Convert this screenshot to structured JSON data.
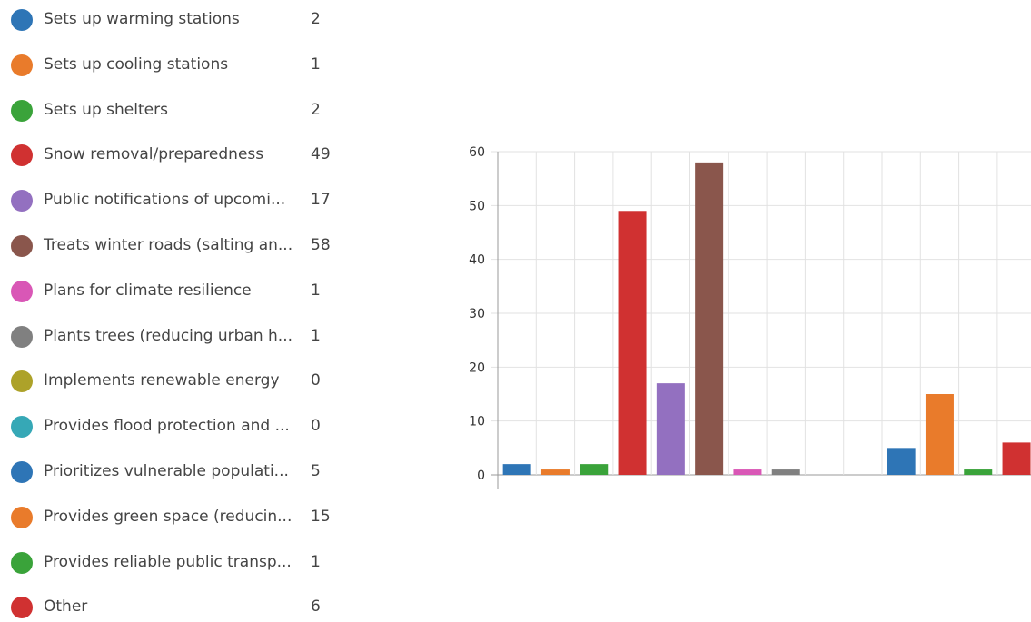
{
  "legend": {
    "items": [
      {
        "label": "Sets up warming stations",
        "value": "2",
        "color": "#2e75b6"
      },
      {
        "label": "Sets up cooling stations",
        "value": "1",
        "color": "#e97b2b"
      },
      {
        "label": "Sets up shelters",
        "value": "2",
        "color": "#3aa33a"
      },
      {
        "label": "Snow removal/preparedness",
        "value": "49",
        "color": "#d03131"
      },
      {
        "label": "Public notifications of upcomi...",
        "value": "17",
        "color": "#9370c0"
      },
      {
        "label": "Treats winter roads (salting an...",
        "value": "58",
        "color": "#8a564c"
      },
      {
        "label": "Plans for climate resilience",
        "value": "1",
        "color": "#d957b6"
      },
      {
        "label": "Plants trees (reducing urban h...",
        "value": "1",
        "color": "#808080"
      },
      {
        "label": "Implements renewable energy",
        "value": "0",
        "color": "#ada229"
      },
      {
        "label": "Provides flood protection and ...",
        "value": "0",
        "color": "#36a8b6"
      },
      {
        "label": "Prioritizes vulnerable populati...",
        "value": "5",
        "color": "#2e75b6"
      },
      {
        "label": "Provides green space (reducin...",
        "value": "15",
        "color": "#e97b2b"
      },
      {
        "label": "Provides reliable public transp...",
        "value": "1",
        "color": "#3aa33a"
      },
      {
        "label": "Other",
        "value": "6",
        "color": "#d03131"
      }
    ]
  },
  "chart_data": {
    "type": "bar",
    "values": [
      2,
      1,
      2,
      49,
      17,
      58,
      1,
      1,
      0,
      0,
      5,
      15,
      1,
      6
    ],
    "colors": [
      "#2e75b6",
      "#e97b2b",
      "#3aa33a",
      "#d03131",
      "#9370c0",
      "#8a564c",
      "#d957b6",
      "#808080",
      "#ada229",
      "#36a8b6",
      "#2e75b6",
      "#e97b2b",
      "#3aa33a",
      "#d03131"
    ],
    "ylim": [
      0,
      60
    ],
    "yticks": [
      "0",
      "10",
      "20",
      "30",
      "40",
      "50",
      "60"
    ],
    "grid": true,
    "legend": "left"
  }
}
